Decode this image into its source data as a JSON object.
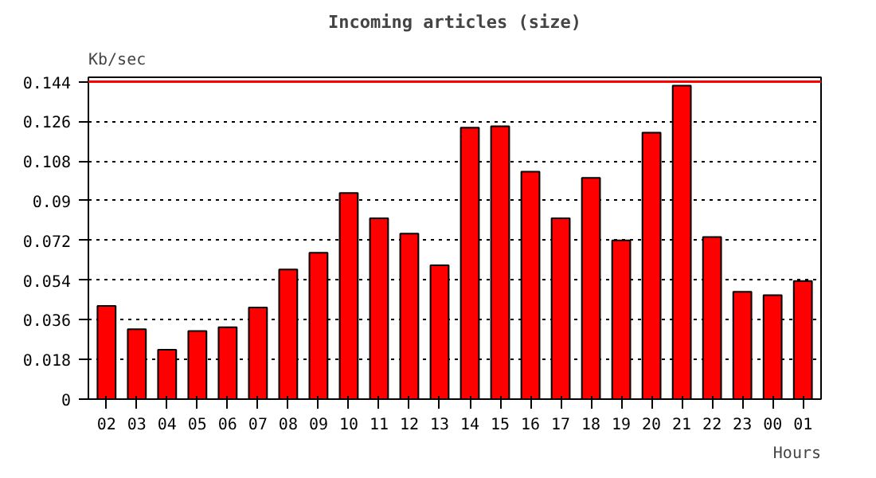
{
  "chart_data": {
    "type": "bar",
    "title": "Incoming articles (size)",
    "xlabel": "Hours",
    "ylabel": "Kb/sec",
    "categories": [
      "02",
      "03",
      "04",
      "05",
      "06",
      "07",
      "08",
      "09",
      "10",
      "11",
      "12",
      "13",
      "14",
      "15",
      "16",
      "17",
      "18",
      "19",
      "20",
      "21",
      "22",
      "23",
      "00",
      "01"
    ],
    "values": [
      0.0423,
      0.0317,
      0.0224,
      0.0309,
      0.0326,
      0.0416,
      0.0588,
      0.0664,
      0.0935,
      0.082,
      0.0751,
      0.0607,
      0.1231,
      0.1238,
      0.1032,
      0.082,
      0.1004,
      0.072,
      0.1209,
      0.1422,
      0.0735,
      0.0487,
      0.0472,
      0.0536
    ],
    "color": "#ff0000",
    "ylim": [
      0,
      0.146
    ],
    "yticks": [
      0,
      0.018,
      0.036,
      0.054,
      0.072,
      0.09,
      0.108,
      0.126,
      0.144
    ],
    "grid": "y",
    "line_style": "dotted",
    "ref_lines": [
      {
        "axis": "y",
        "value": 0.144,
        "color": "#ff0000"
      }
    ]
  }
}
